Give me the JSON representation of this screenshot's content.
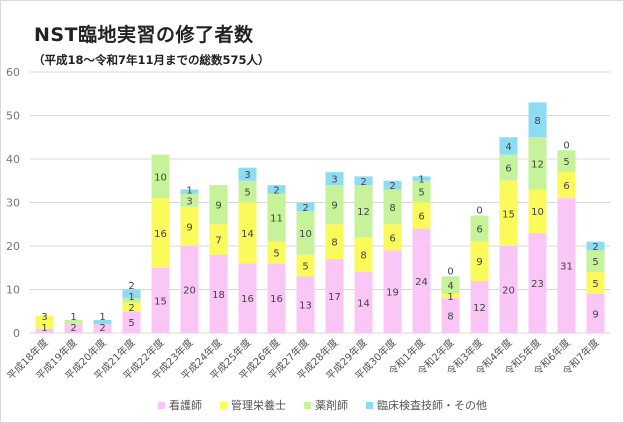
{
  "chart_data": {
    "type": "bar",
    "stacked": true,
    "title": "NST臨地実習の修了者数",
    "subtitle": "（平成18～令和7年11月までの総数575人）",
    "xlabel": "",
    "ylabel": "",
    "ylim": [
      0,
      60
    ],
    "yticks": [
      0,
      10,
      20,
      30,
      40,
      50,
      60
    ],
    "grid": true,
    "legend_position": "bottom",
    "categories": [
      "平成18年度",
      "平成19年度",
      "平成20年度",
      "平成21年度",
      "平成22年度",
      "平成23年度",
      "平成24年度",
      "平成25年度",
      "平成26年度",
      "平成27年度",
      "平成28年度",
      "平成29年度",
      "平成30年度",
      "令和1年度",
      "令和2年度",
      "令和3年度",
      "令和4年度",
      "令和5年度",
      "令和6年度",
      "令和7年度"
    ],
    "series": [
      {
        "name": "看護師",
        "color": "#f9c6f5",
        "values": [
          1,
          2,
          2,
          5,
          15,
          20,
          18,
          16,
          16,
          13,
          17,
          14,
          19,
          24,
          8,
          12,
          20,
          23,
          31,
          9
        ],
        "labels": [
          "1",
          "2",
          "2",
          "5",
          "15",
          "20",
          "18",
          "16",
          "16",
          "13",
          "17",
          "14",
          "19",
          "24",
          "8",
          "12",
          "20",
          "23",
          "31",
          "9"
        ]
      },
      {
        "name": "管理栄養士",
        "color": "#fafa5a",
        "values": [
          3,
          0,
          0,
          2,
          16,
          9,
          7,
          14,
          5,
          5,
          8,
          8,
          6,
          6,
          1,
          9,
          15,
          10,
          6,
          5
        ],
        "labels": [
          "3",
          "",
          "",
          "2",
          "16",
          "9",
          "7",
          "14",
          "5",
          "5",
          "8",
          "8",
          "6",
          "6",
          "1",
          "9",
          "15",
          "10",
          "6",
          "5"
        ]
      },
      {
        "name": "薬剤師",
        "color": "#c6f29a",
        "values": [
          0,
          1,
          0,
          1,
          10,
          3,
          9,
          5,
          11,
          10,
          9,
          12,
          8,
          5,
          4,
          6,
          6,
          12,
          5,
          5
        ],
        "labels": [
          "",
          "1",
          "",
          "1",
          "10",
          "3",
          "9",
          "5",
          "11",
          "10",
          "9",
          "12",
          "8",
          "5",
          "4",
          "6",
          "6",
          "12",
          "5",
          "5"
        ]
      },
      {
        "name": "臨床検査技師・その他",
        "color": "#8ddcf2",
        "values": [
          0,
          0,
          1,
          2,
          0,
          1,
          0,
          3,
          2,
          2,
          3,
          2,
          2,
          1,
          0,
          0,
          4,
          8,
          0,
          2
        ],
        "labels": [
          "",
          "",
          "1",
          "2",
          "",
          "1",
          "",
          "3",
          "2",
          "2",
          "3",
          "2",
          "2",
          "1",
          "0",
          "0",
          "4",
          "8",
          "0",
          "2"
        ]
      }
    ]
  }
}
